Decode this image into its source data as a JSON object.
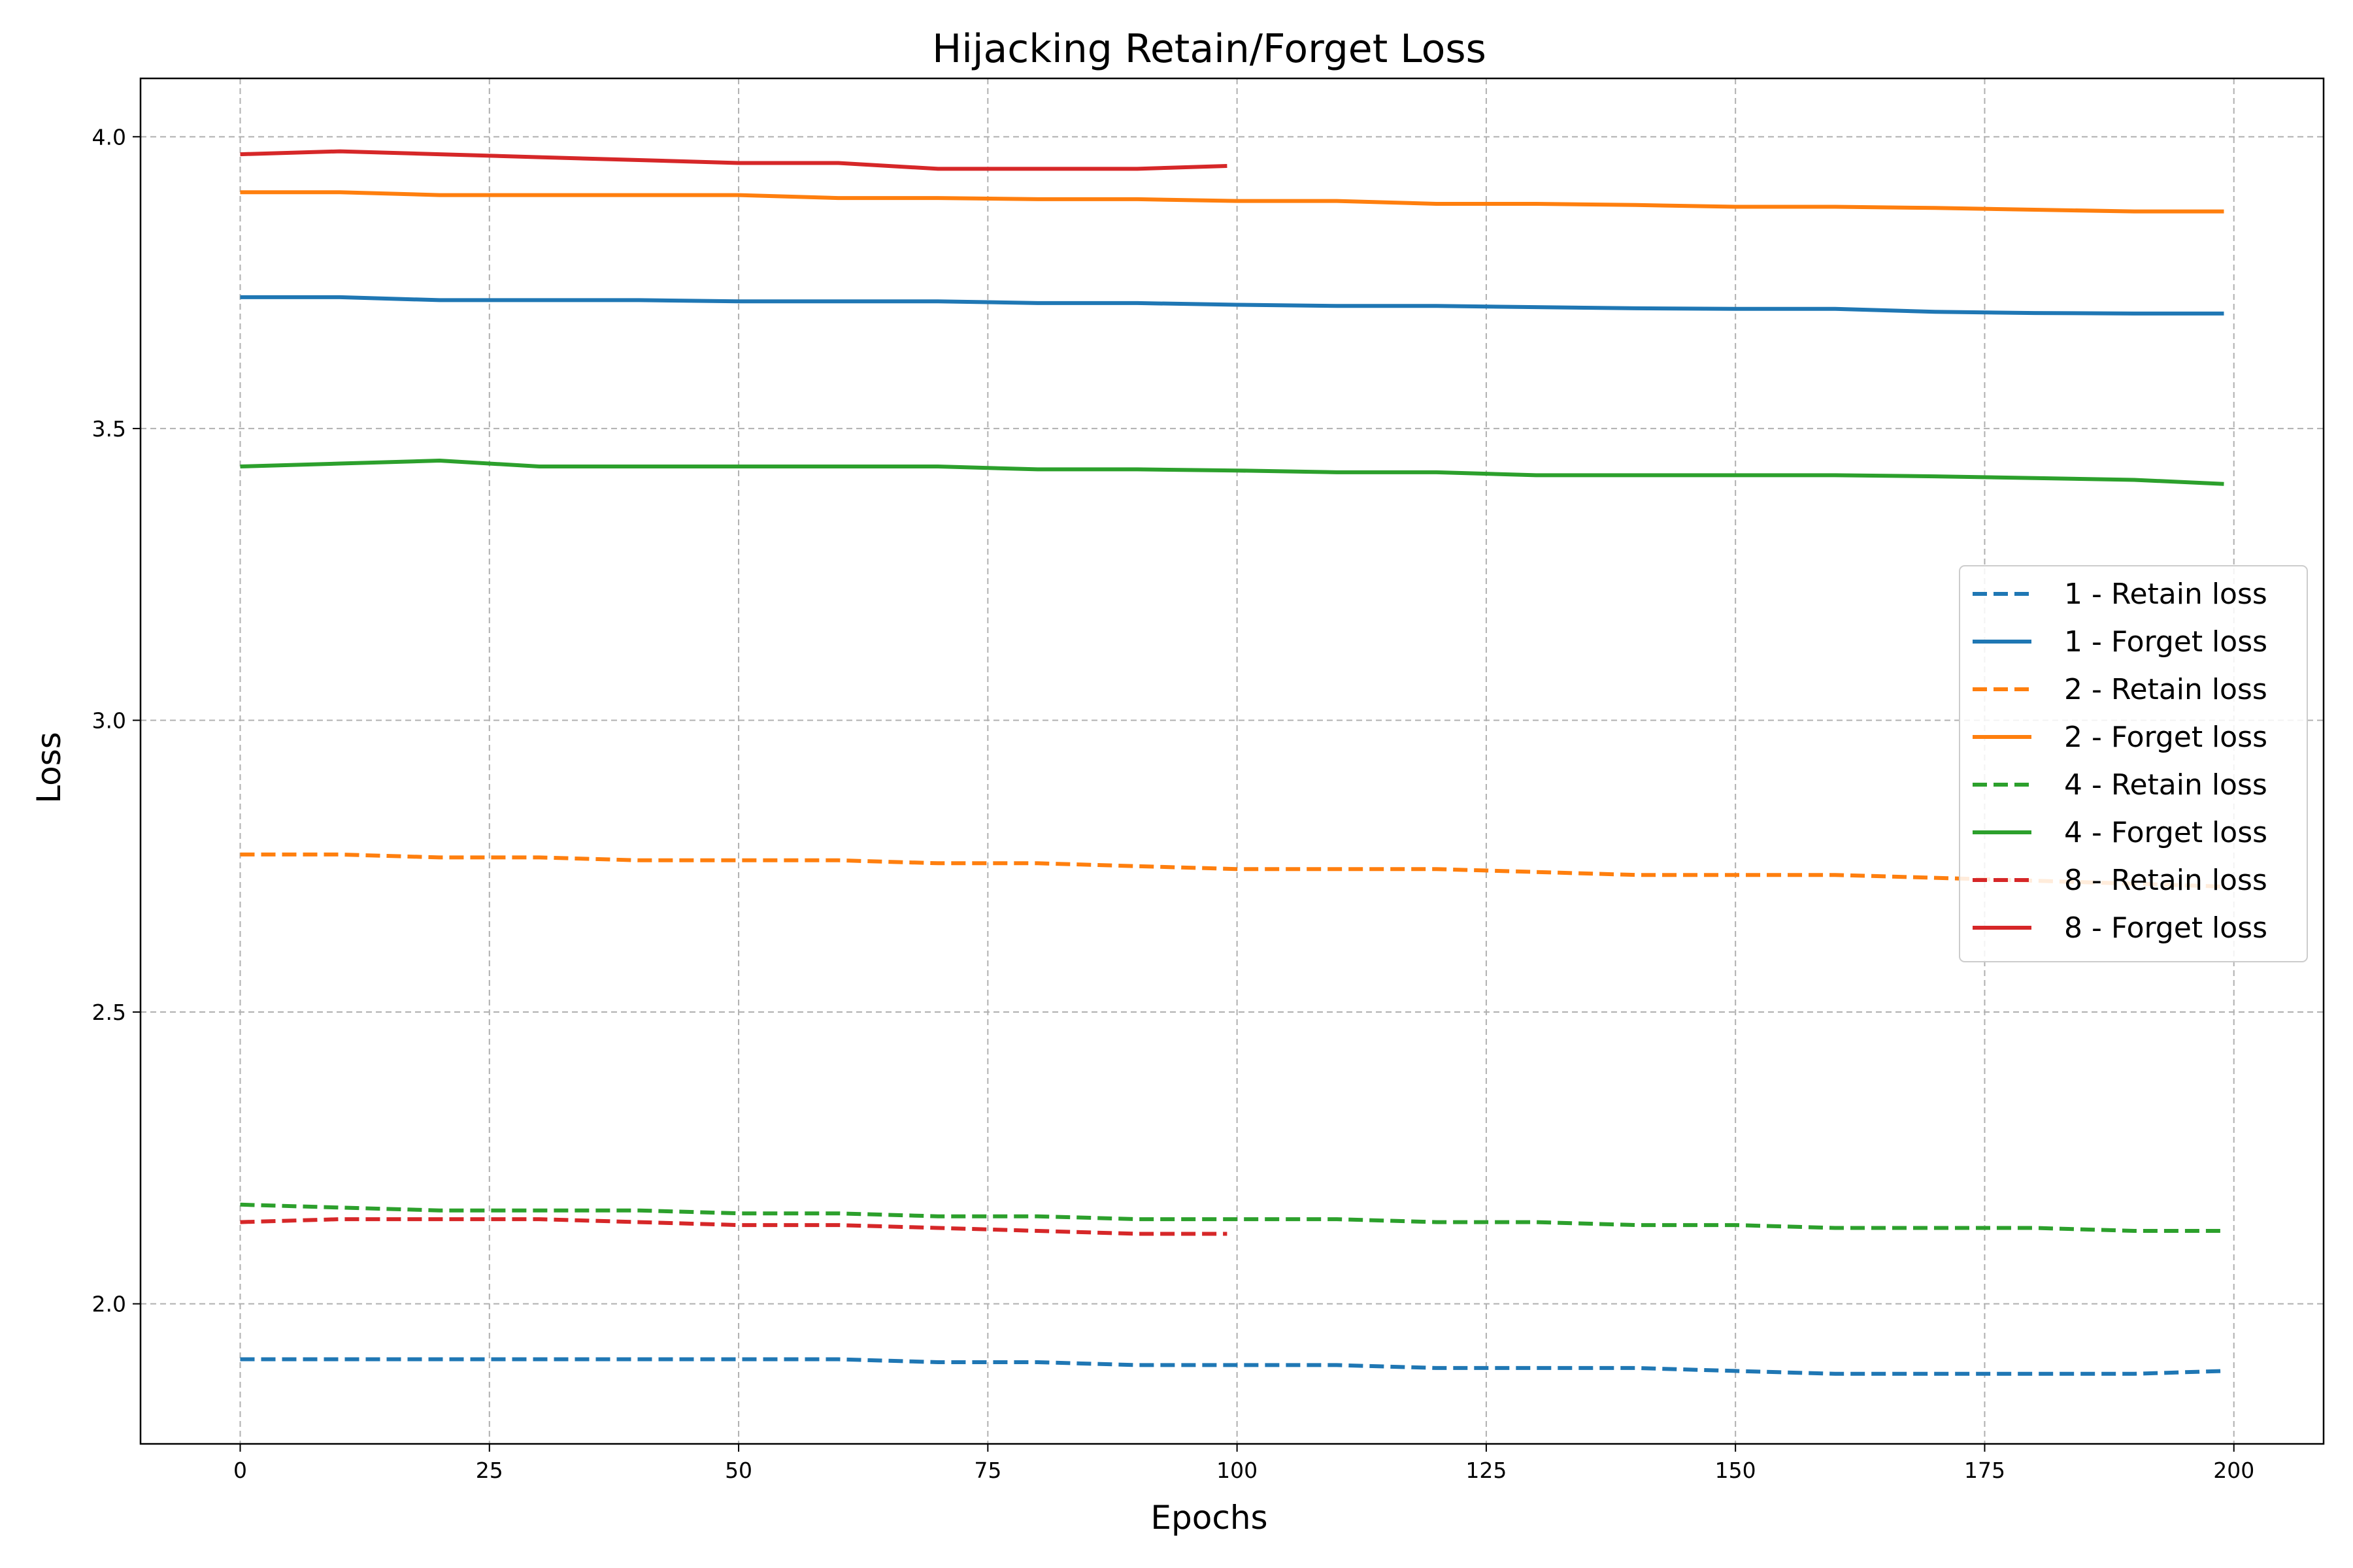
{
  "chart_data": {
    "type": "line",
    "title": "Hijacking Retain/Forget Loss",
    "xlabel": "Epochs",
    "ylabel": "Loss",
    "xlim": [
      -10,
      209
    ],
    "ylim": [
      1.76,
      4.1
    ],
    "xticks": [
      0,
      25,
      50,
      75,
      100,
      125,
      150,
      175,
      200
    ],
    "xtick_labels": [
      "0",
      "25",
      "50",
      "75",
      "100",
      "125",
      "150",
      "175",
      "200"
    ],
    "yticks": [
      2.0,
      2.5,
      3.0,
      3.5,
      4.0
    ],
    "ytick_labels": [
      "2.0",
      "2.5",
      "3.0",
      "3.5",
      "4.0"
    ],
    "grid": true,
    "legend_position": "center-right",
    "series": [
      {
        "name": "1 - Retain loss",
        "color": "#1f77b4",
        "style": "dashed",
        "x": [
          0,
          10,
          20,
          30,
          40,
          50,
          60,
          70,
          80,
          90,
          100,
          110,
          120,
          130,
          140,
          150,
          160,
          170,
          180,
          190,
          199
        ],
        "y": [
          1.905,
          1.905,
          1.905,
          1.905,
          1.905,
          1.905,
          1.905,
          1.9,
          1.9,
          1.895,
          1.895,
          1.895,
          1.89,
          1.89,
          1.89,
          1.885,
          1.88,
          1.88,
          1.88,
          1.88,
          1.885
        ]
      },
      {
        "name": "1 - Forget loss",
        "color": "#1f77b4",
        "style": "solid",
        "x": [
          0,
          10,
          20,
          30,
          40,
          50,
          60,
          70,
          80,
          90,
          100,
          110,
          120,
          130,
          140,
          150,
          160,
          170,
          180,
          190,
          199
        ],
        "y": [
          3.725,
          3.725,
          3.72,
          3.72,
          3.72,
          3.718,
          3.718,
          3.718,
          3.715,
          3.715,
          3.712,
          3.71,
          3.71,
          3.708,
          3.706,
          3.705,
          3.705,
          3.7,
          3.698,
          3.697,
          3.697
        ]
      },
      {
        "name": "2 - Retain loss",
        "color": "#ff7f0e",
        "style": "dashed",
        "x": [
          0,
          10,
          20,
          30,
          40,
          50,
          60,
          70,
          80,
          90,
          100,
          110,
          120,
          130,
          140,
          150,
          160,
          170,
          180,
          190,
          199
        ],
        "y": [
          2.77,
          2.77,
          2.765,
          2.765,
          2.76,
          2.76,
          2.76,
          2.755,
          2.755,
          2.75,
          2.745,
          2.745,
          2.745,
          2.74,
          2.735,
          2.735,
          2.735,
          2.73,
          2.725,
          2.72,
          2.715
        ]
      },
      {
        "name": "2 - Forget loss",
        "color": "#ff7f0e",
        "style": "solid",
        "x": [
          0,
          10,
          20,
          30,
          40,
          50,
          60,
          70,
          80,
          90,
          100,
          110,
          120,
          130,
          140,
          150,
          160,
          170,
          180,
          190,
          199
        ],
        "y": [
          3.905,
          3.905,
          3.9,
          3.9,
          3.9,
          3.9,
          3.895,
          3.895,
          3.893,
          3.893,
          3.89,
          3.89,
          3.885,
          3.885,
          3.883,
          3.88,
          3.88,
          3.878,
          3.875,
          3.872,
          3.872
        ]
      },
      {
        "name": "4 - Retain loss",
        "color": "#2ca02c",
        "style": "dashed",
        "x": [
          0,
          10,
          20,
          30,
          40,
          50,
          60,
          70,
          80,
          90,
          100,
          110,
          120,
          130,
          140,
          150,
          160,
          170,
          180,
          190,
          199
        ],
        "y": [
          2.17,
          2.165,
          2.16,
          2.16,
          2.16,
          2.155,
          2.155,
          2.15,
          2.15,
          2.145,
          2.145,
          2.145,
          2.14,
          2.14,
          2.135,
          2.135,
          2.13,
          2.13,
          2.13,
          2.125,
          2.125
        ]
      },
      {
        "name": "4 - Forget loss",
        "color": "#2ca02c",
        "style": "solid",
        "x": [
          0,
          10,
          20,
          30,
          40,
          50,
          60,
          70,
          80,
          90,
          100,
          110,
          120,
          130,
          140,
          150,
          160,
          170,
          180,
          190,
          199
        ],
        "y": [
          3.435,
          3.44,
          3.445,
          3.435,
          3.435,
          3.435,
          3.435,
          3.435,
          3.43,
          3.43,
          3.428,
          3.425,
          3.425,
          3.42,
          3.42,
          3.42,
          3.42,
          3.418,
          3.415,
          3.412,
          3.405
        ]
      },
      {
        "name": "8 - Retain loss",
        "color": "#d62728",
        "style": "dashed",
        "x": [
          0,
          10,
          20,
          30,
          40,
          50,
          60,
          70,
          80,
          90,
          99
        ],
        "y": [
          2.14,
          2.145,
          2.145,
          2.145,
          2.14,
          2.135,
          2.135,
          2.13,
          2.125,
          2.12,
          2.12
        ]
      },
      {
        "name": "8 - Forget loss",
        "color": "#d62728",
        "style": "solid",
        "x": [
          0,
          10,
          20,
          30,
          40,
          50,
          60,
          70,
          80,
          90,
          99
        ],
        "y": [
          3.97,
          3.975,
          3.97,
          3.965,
          3.96,
          3.955,
          3.955,
          3.945,
          3.945,
          3.945,
          3.95
        ]
      }
    ]
  }
}
